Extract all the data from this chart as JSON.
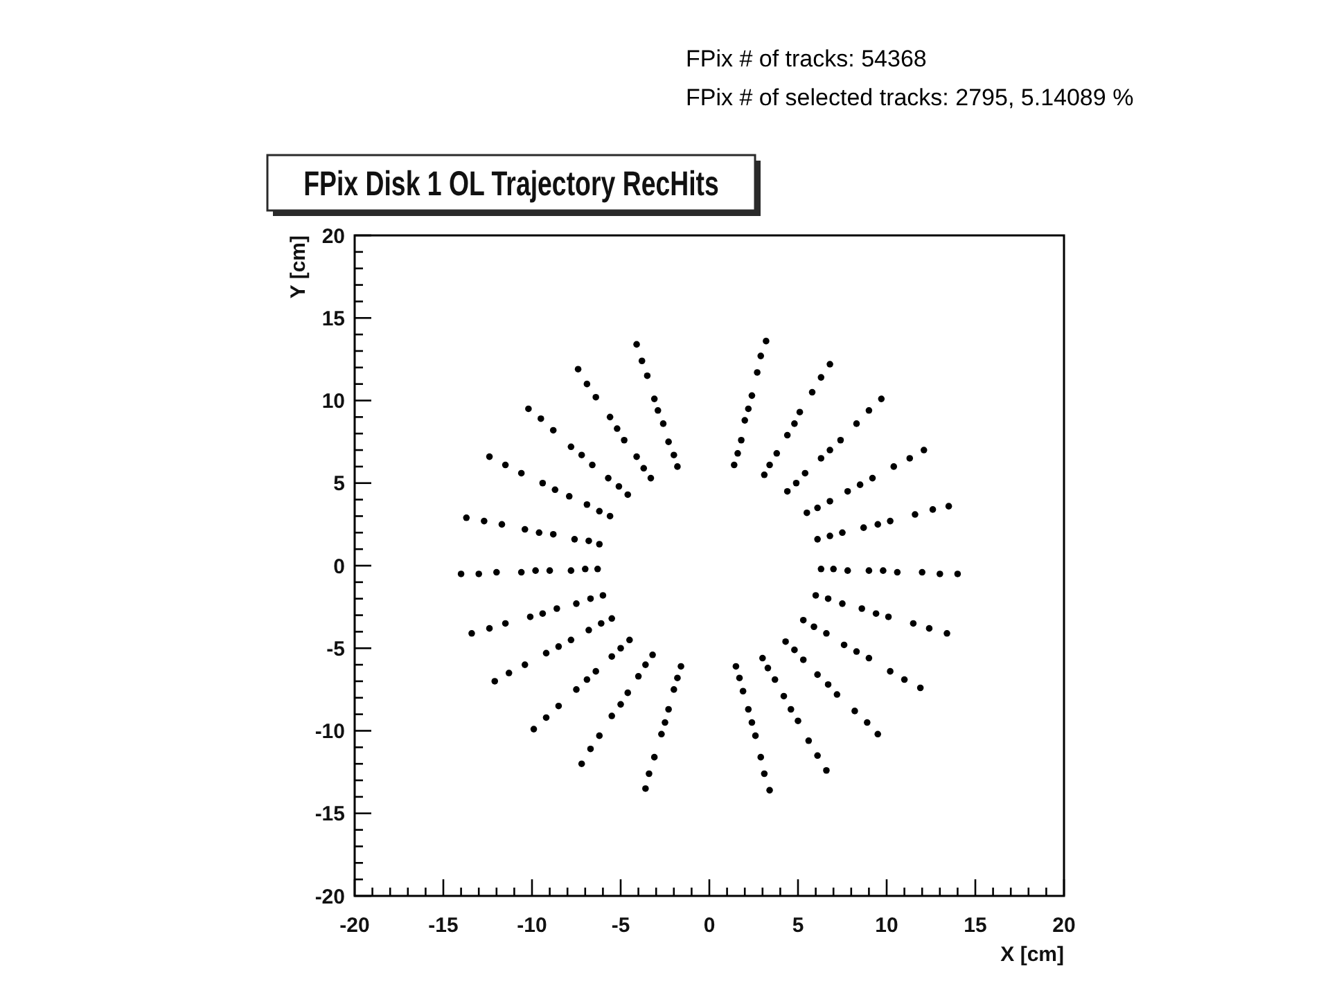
{
  "chart_data": {
    "type": "scatter",
    "title": "FPix Disk 1 OL Trajectory RecHits",
    "xlabel": "X [cm]",
    "ylabel": "Y [cm]",
    "annotations": [
      "FPix # of tracks: 54368",
      "FPix # of selected tracks: 2795, 5.14089 %"
    ],
    "xlim": [
      -20,
      20
    ],
    "ylim": [
      -20,
      20
    ],
    "xticks": [
      -20,
      {
        "value": -19,
        "label": null
      },
      {
        "value": -18,
        "label": null
      },
      {
        "value": -17,
        "label": null
      },
      {
        "value": -16,
        "label": null
      },
      -15,
      {
        "value": -14,
        "label": null
      },
      {
        "value": -13,
        "label": null
      },
      {
        "value": -12,
        "label": null
      },
      {
        "value": -11,
        "label": null
      },
      -10,
      {
        "value": -9,
        "label": null
      },
      {
        "value": -8,
        "label": null
      },
      {
        "value": -7,
        "label": null
      },
      {
        "value": -6,
        "label": null
      },
      -5,
      {
        "value": -4,
        "label": null
      },
      {
        "value": -3,
        "label": null
      },
      {
        "value": -2,
        "label": null
      },
      {
        "value": -1,
        "label": null
      },
      0,
      {
        "value": 1,
        "label": null
      },
      {
        "value": 2,
        "label": null
      },
      {
        "value": 3,
        "label": null
      },
      {
        "value": 4,
        "label": null
      },
      5,
      {
        "value": 6,
        "label": null
      },
      {
        "value": 7,
        "label": null
      },
      {
        "value": 8,
        "label": null
      },
      {
        "value": 9,
        "label": null
      },
      10,
      {
        "value": 11,
        "label": null
      },
      {
        "value": 12,
        "label": null
      },
      {
        "value": 13,
        "label": null
      },
      {
        "value": 14,
        "label": null
      },
      15,
      {
        "value": 16,
        "label": null
      },
      {
        "value": 17,
        "label": null
      },
      {
        "value": 18,
        "label": null
      },
      {
        "value": 19,
        "label": null
      },
      20
    ],
    "yticks": [
      -20,
      {
        "value": -19,
        "label": null
      },
      {
        "value": -18,
        "label": null
      },
      {
        "value": -17,
        "label": null
      },
      {
        "value": -16,
        "label": null
      },
      -15,
      {
        "value": -14,
        "label": null
      },
      {
        "value": -13,
        "label": null
      },
      {
        "value": -12,
        "label": null
      },
      {
        "value": -11,
        "label": null
      },
      -10,
      {
        "value": -9,
        "label": null
      },
      {
        "value": -8,
        "label": null
      },
      {
        "value": -7,
        "label": null
      },
      {
        "value": -6,
        "label": null
      },
      -5,
      {
        "value": -4,
        "label": null
      },
      {
        "value": -3,
        "label": null
      },
      {
        "value": -2,
        "label": null
      },
      {
        "value": -1,
        "label": null
      },
      0,
      {
        "value": 1,
        "label": null
      },
      {
        "value": 2,
        "label": null
      },
      {
        "value": 3,
        "label": null
      },
      {
        "value": 4,
        "label": null
      },
      5,
      {
        "value": 6,
        "label": null
      },
      {
        "value": 7,
        "label": null
      },
      {
        "value": 8,
        "label": null
      },
      {
        "value": 9,
        "label": null
      },
      10,
      {
        "value": 11,
        "label": null
      },
      {
        "value": 12,
        "label": null
      },
      {
        "value": 13,
        "label": null
      },
      {
        "value": 14,
        "label": null
      },
      15,
      {
        "value": 16,
        "label": null
      },
      {
        "value": 17,
        "label": null
      },
      {
        "value": 18,
        "label": null
      },
      {
        "value": 19,
        "label": null
      },
      20
    ],
    "marker": "circle",
    "series": [
      {
        "color": "#000000",
        "x": [
          1.4,
          1.6,
          1.8,
          2.0,
          2.2,
          2.4,
          2.7,
          2.9,
          3.2,
          3.1,
          3.4,
          3.8,
          4.4,
          4.8,
          5.1,
          5.8,
          6.3,
          6.8,
          4.4,
          4.9,
          5.4,
          6.3,
          6.8,
          7.4,
          8.3,
          9.0,
          9.7,
          5.5,
          6.1,
          6.8,
          7.8,
          8.5,
          9.2,
          10.4,
          11.3,
          12.1,
          6.1,
          6.8,
          7.5,
          8.7,
          9.5,
          10.2,
          11.6,
          12.6,
          13.5,
          6.3,
          7.0,
          7.8,
          9.0,
          9.8,
          10.6,
          12.0,
          13.0,
          14.0,
          6.0,
          6.7,
          7.5,
          8.6,
          9.4,
          10.1,
          11.5,
          12.4,
          13.4,
          5.3,
          5.9,
          6.6,
          7.6,
          8.3,
          9.0,
          10.2,
          11.0,
          11.9,
          4.3,
          4.8,
          5.3,
          6.1,
          6.7,
          7.2,
          8.2,
          8.9,
          9.5,
          3.0,
          3.3,
          3.7,
          4.2,
          4.6,
          5.0,
          5.6,
          6.1,
          6.6,
          1.5,
          1.7,
          1.9,
          2.2,
          2.4,
          2.6,
          2.9,
          3.1,
          3.4
        ],
        "values": [
          6.1,
          6.8,
          7.6,
          8.8,
          9.5,
          10.3,
          11.7,
          12.7,
          13.6,
          5.5,
          6.1,
          6.8,
          7.9,
          8.6,
          9.3,
          10.5,
          11.4,
          12.2,
          4.5,
          5.0,
          5.6,
          6.5,
          7.0,
          7.6,
          8.6,
          9.4,
          10.1,
          3.2,
          3.5,
          3.9,
          4.5,
          4.9,
          5.3,
          6.0,
          6.5,
          7.0,
          1.6,
          1.8,
          2.0,
          2.3,
          2.5,
          2.7,
          3.1,
          3.4,
          3.6,
          -0.2,
          -0.2,
          -0.3,
          -0.3,
          -0.3,
          -0.4,
          -0.4,
          -0.5,
          -0.5,
          -1.8,
          -2.0,
          -2.3,
          -2.6,
          -2.9,
          -3.1,
          -3.5,
          -3.8,
          -4.1,
          -3.3,
          -3.7,
          -4.1,
          -4.8,
          -5.2,
          -5.6,
          -6.4,
          -6.9,
          -7.4,
          -4.6,
          -5.1,
          -5.7,
          -6.6,
          -7.2,
          -7.8,
          -8.8,
          -9.5,
          -10.2,
          -5.6,
          -6.2,
          -6.9,
          -7.9,
          -8.7,
          -9.4,
          -10.6,
          -11.5,
          -12.4,
          -6.1,
          -6.8,
          -7.6,
          -8.7,
          -9.5,
          -10.3,
          -11.6,
          -12.6,
          -13.6
        ]
      },
      {
        "color": "#000000",
        "x": [
          -1.8,
          -2.0,
          -2.3,
          -2.6,
          -2.9,
          -3.1,
          -3.5,
          -3.8,
          -4.1,
          -3.3,
          -3.7,
          -4.1,
          -4.8,
          -5.2,
          -5.6,
          -6.4,
          -6.9,
          -7.4,
          -4.6,
          -5.1,
          -5.7,
          -6.6,
          -7.2,
          -7.8,
          -8.8,
          -9.5,
          -10.2,
          -5.6,
          -6.2,
          -6.9,
          -7.9,
          -8.7,
          -9.4,
          -10.6,
          -11.5,
          -12.4,
          -6.2,
          -6.8,
          -7.6,
          -8.8,
          -9.6,
          -10.4,
          -11.7,
          -12.7,
          -13.7,
          -6.3,
          -7.0,
          -7.8,
          -9.0,
          -9.8,
          -10.6,
          -12.0,
          -13.0,
          -14.0,
          -6.0,
          -6.7,
          -7.5,
          -8.6,
          -9.4,
          -10.1,
          -11.5,
          -12.4,
          -13.4,
          -5.5,
          -6.1,
          -6.8,
          -7.8,
          -8.5,
          -9.2,
          -10.4,
          -11.3,
          -12.1,
          -4.5,
          -5.0,
          -5.5,
          -6.4,
          -6.9,
          -7.5,
          -8.5,
          -9.2,
          -9.9,
          -3.2,
          -3.6,
          -4.0,
          -4.6,
          -5.0,
          -5.5,
          -6.2,
          -6.7,
          -7.2,
          -1.6,
          -1.8,
          -2.0,
          -2.3,
          -2.5,
          -2.7,
          -3.1,
          -3.4,
          -3.6
        ],
        "values": [
          6.0,
          6.7,
          7.5,
          8.6,
          9.4,
          10.1,
          11.5,
          12.4,
          13.4,
          5.3,
          5.9,
          6.6,
          7.6,
          8.3,
          9.0,
          10.2,
          11.0,
          11.9,
          4.3,
          4.8,
          5.3,
          6.1,
          6.7,
          7.2,
          8.2,
          8.9,
          9.5,
          3.0,
          3.3,
          3.7,
          4.2,
          4.6,
          5.0,
          5.6,
          6.1,
          6.6,
          1.3,
          1.5,
          1.6,
          1.9,
          2.0,
          2.2,
          2.5,
          2.7,
          2.9,
          -0.2,
          -0.2,
          -0.3,
          -0.3,
          -0.3,
          -0.4,
          -0.4,
          -0.5,
          -0.5,
          -1.8,
          -2.0,
          -2.3,
          -2.6,
          -2.9,
          -3.1,
          -3.5,
          -3.8,
          -4.1,
          -3.2,
          -3.5,
          -3.9,
          -4.5,
          -4.9,
          -5.3,
          -6.0,
          -6.5,
          -7.0,
          -4.5,
          -5.0,
          -5.5,
          -6.4,
          -6.9,
          -7.5,
          -8.5,
          -9.2,
          -9.9,
          -5.4,
          -6.0,
          -6.7,
          -7.7,
          -8.4,
          -9.1,
          -10.3,
          -11.1,
          -12.0,
          -6.1,
          -6.8,
          -7.5,
          -8.7,
          -9.5,
          -10.2,
          -11.6,
          -12.6,
          -13.5
        ]
      }
    ]
  }
}
